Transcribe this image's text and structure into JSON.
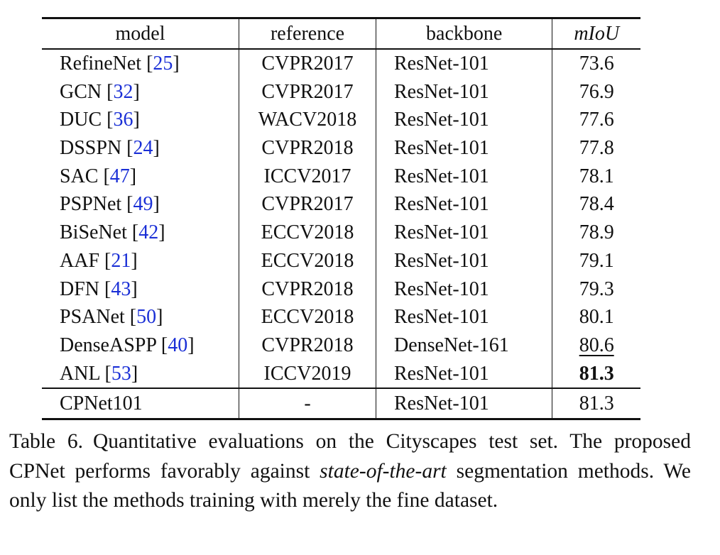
{
  "table": {
    "headers": {
      "model": "model",
      "reference": "reference",
      "backbone": "backbone",
      "miou": "mIoU"
    },
    "rows": [
      {
        "model": "RefineNet",
        "cite": "25",
        "reference": "CVPR2017",
        "backbone": "ResNet-101",
        "miou": "73.6"
      },
      {
        "model": "GCN",
        "cite": "32",
        "reference": "CVPR2017",
        "backbone": "ResNet-101",
        "miou": "76.9"
      },
      {
        "model": "DUC",
        "cite": "36",
        "reference": "WACV2018",
        "backbone": "ResNet-101",
        "miou": "77.6"
      },
      {
        "model": "DSSPN",
        "cite": "24",
        "reference": "CVPR2018",
        "backbone": "ResNet-101",
        "miou": "77.8"
      },
      {
        "model": "SAC",
        "cite": "47",
        "reference": "ICCV2017",
        "backbone": "ResNet-101",
        "miou": "78.1"
      },
      {
        "model": "PSPNet",
        "cite": "49",
        "reference": "CVPR2017",
        "backbone": "ResNet-101",
        "miou": "78.4"
      },
      {
        "model": "BiSeNet",
        "cite": "42",
        "reference": "ECCV2018",
        "backbone": "ResNet-101",
        "miou": "78.9"
      },
      {
        "model": "AAF",
        "cite": "21",
        "reference": "ECCV2018",
        "backbone": "ResNet-101",
        "miou": "79.1"
      },
      {
        "model": "DFN",
        "cite": "43",
        "reference": "CVPR2018",
        "backbone": "ResNet-101",
        "miou": "79.3"
      },
      {
        "model": "PSANet",
        "cite": "50",
        "reference": "ECCV2018",
        "backbone": "ResNet-101",
        "miou": "80.1"
      },
      {
        "model": "DenseASPP",
        "cite": "40",
        "reference": "CVPR2018",
        "backbone": "DenseNet-161",
        "miou": "80.6"
      },
      {
        "model": "ANL",
        "cite": "53",
        "reference": "ICCV2019",
        "backbone": "ResNet-101",
        "miou": "81.3"
      }
    ],
    "ours": {
      "model": "CPNet101",
      "reference": "-",
      "backbone": "ResNet-101",
      "miou": "81.3"
    }
  },
  "caption": {
    "label": "Table 6.",
    "text_before": "Quantitative evaluations on the Cityscapes test set. The proposed CPNet performs favorably against ",
    "italic": "state-of-the-art",
    "text_after": " segmentation methods. We only list the methods training with merely the fine dataset."
  }
}
